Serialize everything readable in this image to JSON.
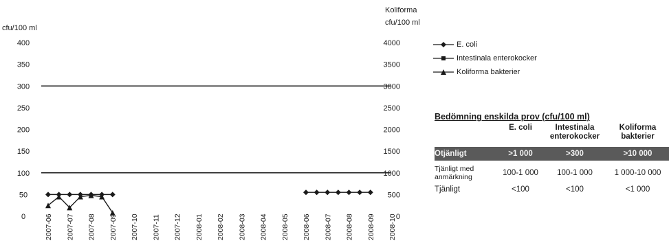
{
  "chart_data": {
    "type": "line",
    "left_axis_label": "cfu/100 ml",
    "right_axis_label_line1": "Koliforma",
    "right_axis_label_line2": "cfu/100 ml",
    "left_ylim": [
      0,
      400
    ],
    "right_ylim": [
      0,
      4000
    ],
    "left_ticks": [
      "0",
      "50",
      "100",
      "150",
      "200",
      "250",
      "300",
      "350",
      "400"
    ],
    "right_ticks": [
      "0",
      "500",
      "1000",
      "1500",
      "2000",
      "2500",
      "3000",
      "3500",
      "4000"
    ],
    "categories": [
      "2007-06",
      "2007-07",
      "2007-08",
      "2007-09",
      "2007-10",
      "2007-11",
      "2007-12",
      "2008-01",
      "2008-02",
      "2008-03",
      "2008-04",
      "2008-05",
      "2008-06",
      "2008-07",
      "2008-08",
      "2008-09",
      "2008-10"
    ],
    "reference_lines": [
      100,
      300
    ],
    "series": [
      {
        "name": "E. coli",
        "marker": "diamond",
        "axis": "left",
        "segments": [
          [
            [
              0.0,
              50
            ],
            [
              0.5,
              50
            ],
            [
              1.0,
              50
            ],
            [
              1.5,
              50
            ],
            [
              2.0,
              50
            ],
            [
              2.5,
              50
            ],
            [
              3.0,
              50
            ]
          ],
          [
            [
              12.0,
              55
            ],
            [
              12.5,
              55
            ],
            [
              13.0,
              55
            ],
            [
              13.5,
              55
            ],
            [
              14.0,
              55
            ],
            [
              14.5,
              55
            ],
            [
              15.0,
              55
            ]
          ]
        ]
      },
      {
        "name": "Intestinala enterokocker",
        "marker": "square",
        "axis": "left",
        "segments": []
      },
      {
        "name": "Koliforma bakterier",
        "marker": "triangle",
        "axis": "left",
        "segments": [
          [
            [
              0.0,
              25
            ],
            [
              0.5,
              45
            ],
            [
              1.0,
              20
            ],
            [
              1.5,
              45
            ],
            [
              2.0,
              48
            ],
            [
              2.5,
              45
            ],
            [
              3.0,
              8
            ]
          ]
        ]
      }
    ],
    "grid": false,
    "legend_position": "right"
  },
  "assessment": {
    "title": "Bedömning enskilda prov (cfu/100 ml)",
    "headers": [
      "",
      "E. coli",
      "Intestinala enterokocker",
      "Koliforma bakterier"
    ],
    "rows": [
      [
        "Otjänligt",
        ">1 000",
        ">300",
        ">10 000"
      ],
      [
        "Tjänligt med anmärkning",
        "100-1 000",
        "100-1 000",
        "1 000-10 000"
      ],
      [
        "Tjänligt",
        "<100",
        "<100",
        "<1 000"
      ]
    ]
  }
}
